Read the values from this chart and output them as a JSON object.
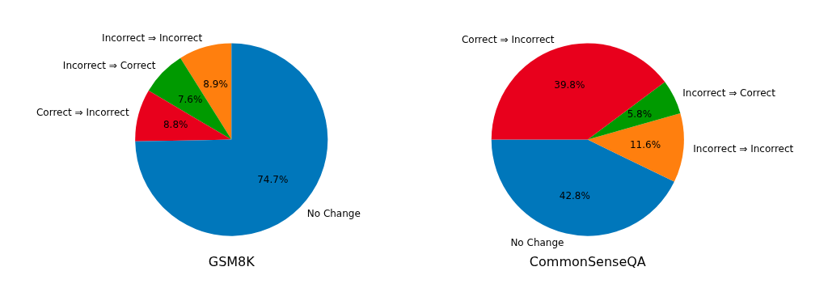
{
  "chart_data": [
    {
      "type": "pie",
      "title": "GSM8K",
      "categories": [
        "Incorrect ⇒ Incorrect",
        "Incorrect ⇒ Correct",
        "Correct ⇒ Incorrect",
        "No Change"
      ],
      "values": [
        8.9,
        7.6,
        8.8,
        74.7
      ],
      "colors": [
        "#ff7f0e",
        "#009a00",
        "#e8001c",
        "#0077bb"
      ],
      "value_labels": [
        "8.9%",
        "7.6%",
        "8.8%",
        "74.7%"
      ]
    },
    {
      "type": "pie",
      "title": "CommonSenseQA",
      "categories": [
        "No Change",
        "Incorrect ⇒ Incorrect",
        "Incorrect ⇒ Correct",
        "Correct ⇒ Incorrect"
      ],
      "values": [
        42.8,
        11.6,
        5.8,
        39.8
      ],
      "colors": [
        "#0077bb",
        "#ff7f0e",
        "#009a00",
        "#e8001c"
      ],
      "value_labels": [
        "42.8%",
        "11.6%",
        "5.8%",
        "39.8%"
      ]
    }
  ]
}
